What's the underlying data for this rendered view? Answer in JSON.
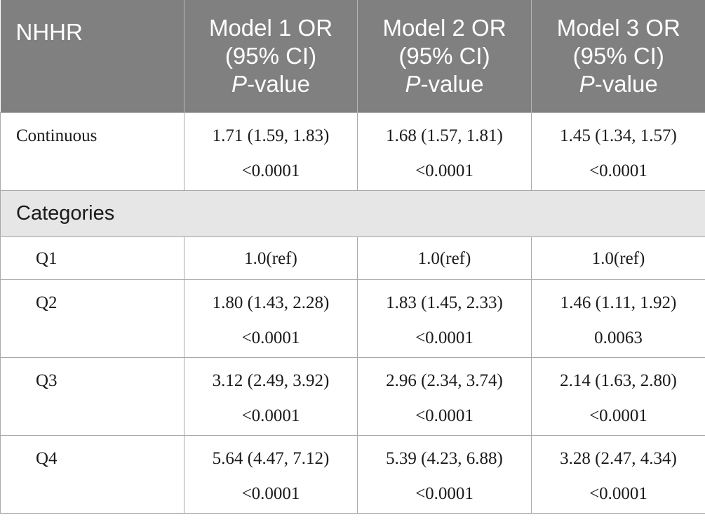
{
  "header": {
    "col1": "NHHR",
    "models": [
      {
        "line1": "Model 1 OR",
        "line2": "(95% CI)",
        "p_italic": "P",
        "p_rest": "-value"
      },
      {
        "line1": "Model 2 OR",
        "line2": "(95% CI)",
        "p_italic": "P",
        "p_rest": "-value"
      },
      {
        "line1": "Model 3 OR",
        "line2": "(95% CI)",
        "p_italic": "P",
        "p_rest": "-value"
      }
    ]
  },
  "rows": {
    "continuous": {
      "label": "Continuous",
      "cells": [
        {
          "or": "1.71 (1.59, 1.83)",
          "p": "<0.0001"
        },
        {
          "or": "1.68 (1.57, 1.81)",
          "p": "<0.0001"
        },
        {
          "or": "1.45 (1.34, 1.57)",
          "p": "<0.0001"
        }
      ]
    },
    "categories_label": "Categories",
    "q1": {
      "label": "Q1",
      "cells": [
        {
          "or": "1.0(ref)"
        },
        {
          "or": "1.0(ref)"
        },
        {
          "or": "1.0(ref)"
        }
      ]
    },
    "q2": {
      "label": "Q2",
      "cells": [
        {
          "or": "1.80 (1.43, 2.28)",
          "p": "<0.0001"
        },
        {
          "or": "1.83 (1.45, 2.33)",
          "p": "<0.0001"
        },
        {
          "or": "1.46 (1.11, 1.92)",
          "p": "0.0063"
        }
      ]
    },
    "q3": {
      "label": "Q3",
      "cells": [
        {
          "or": "3.12 (2.49, 3.92)",
          "p": "<0.0001"
        },
        {
          "or": "2.96 (2.34, 3.74)",
          "p": "<0.0001"
        },
        {
          "or": "2.14 (1.63, 2.80)",
          "p": "<0.0001"
        }
      ]
    },
    "q4": {
      "label": "Q4",
      "cells": [
        {
          "or": "5.64 (4.47, 7.12)",
          "p": "<0.0001"
        },
        {
          "or": "5.39 (4.23, 6.88)",
          "p": "<0.0001"
        },
        {
          "or": "3.28 (2.47, 4.34)",
          "p": "<0.0001"
        }
      ]
    }
  }
}
